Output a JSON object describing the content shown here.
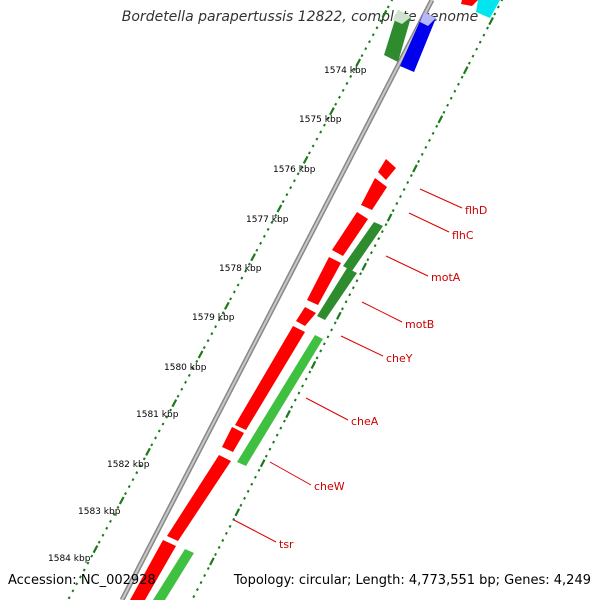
{
  "title": "Bordetella parapertussis 12822, complete genome",
  "footer": {
    "accession": "Accession: NC_002928",
    "summary": "Topology: circular; Length: 4,773,551 bp; Genes: 4,249"
  },
  "colors": {
    "background": "#ffffff",
    "backbone": "#a8a8a8",
    "forward_gene": "#ff0000",
    "reverse_gene": "#2e8b2e",
    "reverse_gene_light": "#40c040",
    "blue_gene": "#0000ee",
    "cyan_gene": "#00e5ee",
    "tick": "#1a7a1a",
    "label_line": "#dd0000",
    "label_text": "#cc0000"
  },
  "scale": {
    "unit": "kbp",
    "ticks": [
      "1574 kbp",
      "1575 kbp",
      "1576 kbp",
      "1577 kbp",
      "1578 kbp",
      "1579 kbp",
      "1580 kbp",
      "1581 kbp",
      "1582 kbp",
      "1583 kbp",
      "1584 kbp"
    ]
  },
  "genes": [
    {
      "name": "flhD",
      "strand": "+"
    },
    {
      "name": "flhC",
      "strand": "+"
    },
    {
      "name": "motA",
      "strand": "+"
    },
    {
      "name": "motB",
      "strand": "+"
    },
    {
      "name": "cheY",
      "strand": "+"
    },
    {
      "name": "cheA",
      "strand": "+"
    },
    {
      "name": "cheW",
      "strand": "+"
    },
    {
      "name": "tsr",
      "strand": "-"
    }
  ]
}
